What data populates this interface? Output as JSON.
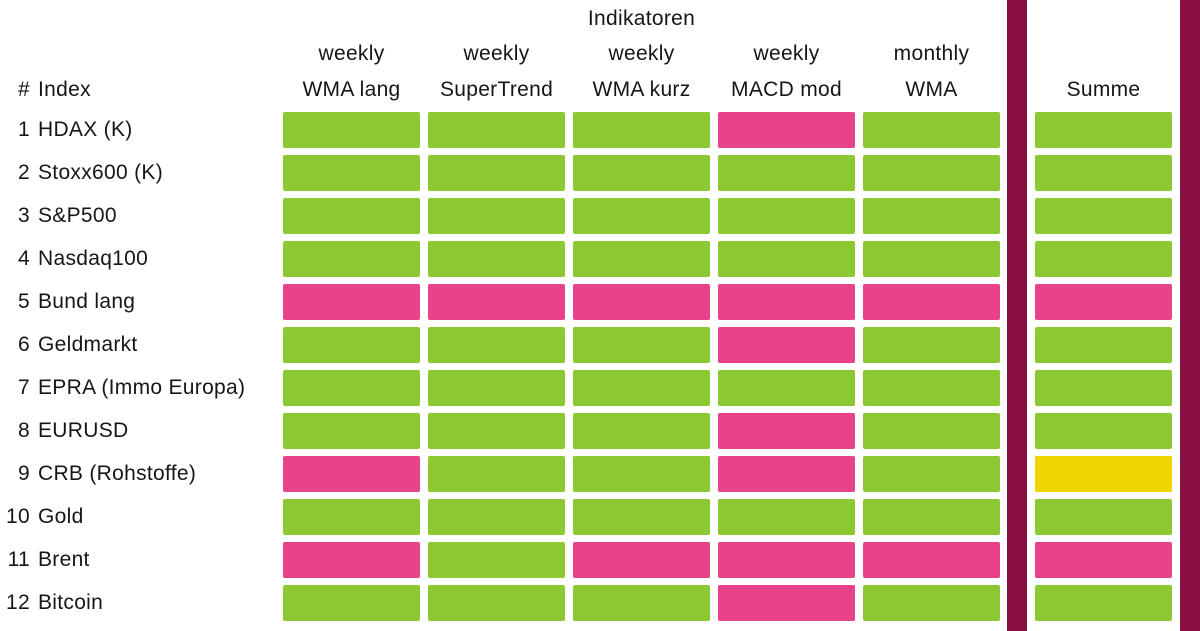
{
  "page": {
    "background": "#ffffff",
    "text_color": "#161616"
  },
  "header": {
    "group_title": "Indikatoren",
    "hash_label": "#",
    "index_label": "Index",
    "summe_label": "Summe"
  },
  "columns": [
    {
      "period": "weekly",
      "name": "WMA lang"
    },
    {
      "period": "weekly",
      "name": "SuperTrend"
    },
    {
      "period": "weekly",
      "name": "WMA kurz"
    },
    {
      "period": "weekly",
      "name": "MACD mod"
    },
    {
      "period": "monthly",
      "name": "WMA"
    }
  ],
  "state_colors": {
    "green": "#8CC832",
    "pink": "#E8428A",
    "yellow": "#EED400"
  },
  "divider_color": "#880E42",
  "chart_data": {
    "type": "heatmap",
    "title": "Indikatoren",
    "column_headers": [
      "weekly WMA lang",
      "weekly SuperTrend",
      "weekly WMA kurz",
      "weekly MACD mod",
      "monthly WMA",
      "Summe"
    ],
    "row_header": "# Index",
    "legend_position": "none",
    "cell_states_meaning": "green | pink | yellow cell colors as shown",
    "rows": [
      {
        "num": "1",
        "label": "HDAX (K)",
        "cells": [
          "green",
          "green",
          "green",
          "pink",
          "green"
        ],
        "summe": "green"
      },
      {
        "num": "2",
        "label": "Stoxx600 (K)",
        "cells": [
          "green",
          "green",
          "green",
          "green",
          "green"
        ],
        "summe": "green"
      },
      {
        "num": "3",
        "label": "S&P500",
        "cells": [
          "green",
          "green",
          "green",
          "green",
          "green"
        ],
        "summe": "green"
      },
      {
        "num": "4",
        "label": "Nasdaq100",
        "cells": [
          "green",
          "green",
          "green",
          "green",
          "green"
        ],
        "summe": "green"
      },
      {
        "num": "5",
        "label": "Bund lang",
        "cells": [
          "pink",
          "pink",
          "pink",
          "pink",
          "pink"
        ],
        "summe": "pink"
      },
      {
        "num": "6",
        "label": "Geldmarkt",
        "cells": [
          "green",
          "green",
          "green",
          "pink",
          "green"
        ],
        "summe": "green"
      },
      {
        "num": "7",
        "label": "EPRA (Immo Europa)",
        "cells": [
          "green",
          "green",
          "green",
          "green",
          "green"
        ],
        "summe": "green"
      },
      {
        "num": "8",
        "label": "EURUSD",
        "cells": [
          "green",
          "green",
          "green",
          "pink",
          "green"
        ],
        "summe": "green"
      },
      {
        "num": "9",
        "label": "CRB (Rohstoffe)",
        "cells": [
          "pink",
          "green",
          "green",
          "pink",
          "green"
        ],
        "summe": "yellow"
      },
      {
        "num": "10",
        "label": "Gold",
        "cells": [
          "green",
          "green",
          "green",
          "green",
          "green"
        ],
        "summe": "green"
      },
      {
        "num": "11",
        "label": "Brent",
        "cells": [
          "pink",
          "green",
          "pink",
          "pink",
          "pink"
        ],
        "summe": "pink"
      },
      {
        "num": "12",
        "label": "Bitcoin",
        "cells": [
          "green",
          "green",
          "green",
          "pink",
          "green"
        ],
        "summe": "green"
      }
    ]
  }
}
